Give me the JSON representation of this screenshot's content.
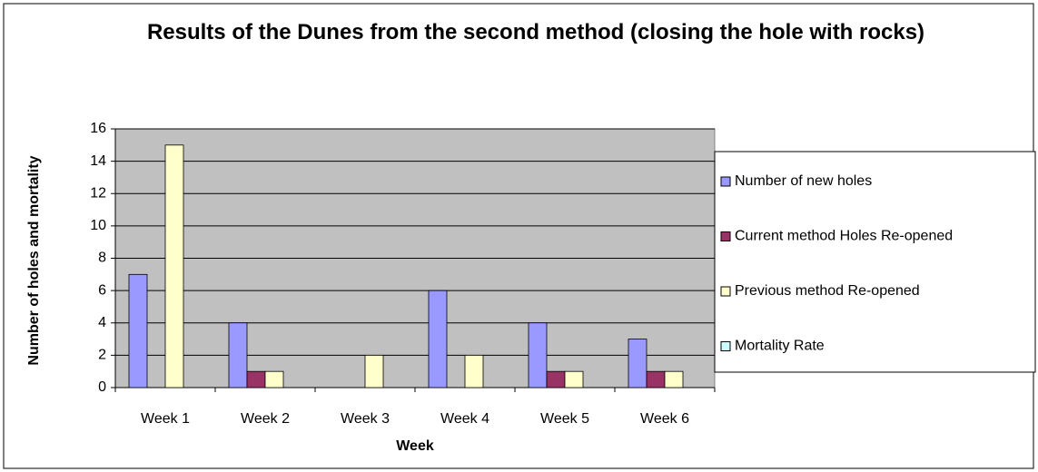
{
  "chart_data": {
    "type": "bar",
    "title": "Results of the Dunes from the second method (closing the hole with rocks)",
    "x_label": "Week",
    "y_label": "Number of holes and mortality",
    "categories": [
      "Week 1",
      "Week 2",
      "Week 3",
      "Week 4",
      "Week 5",
      "Week 6"
    ],
    "series": [
      {
        "name": "Number of new holes",
        "color": "#9999ff",
        "values": [
          7,
          4,
          0,
          6,
          4,
          3
        ]
      },
      {
        "name": "Current method Holes Re-opened",
        "color": "#993366",
        "values": [
          0,
          1,
          0,
          0,
          1,
          1
        ]
      },
      {
        "name": "Previous method  Re-opened",
        "color": "#ffffcc",
        "values": [
          15,
          1,
          2,
          2,
          1,
          1
        ]
      },
      {
        "name": "Mortality Rate",
        "color": "#ccffff",
        "values": [
          0,
          0,
          0,
          0,
          0,
          0
        ]
      }
    ],
    "ylim": [
      0,
      16
    ],
    "yticks": [
      0,
      2,
      4,
      6,
      8,
      10,
      12,
      14,
      16
    ],
    "grid": true,
    "legend": "right",
    "plot_background": "#c0c0c0"
  }
}
